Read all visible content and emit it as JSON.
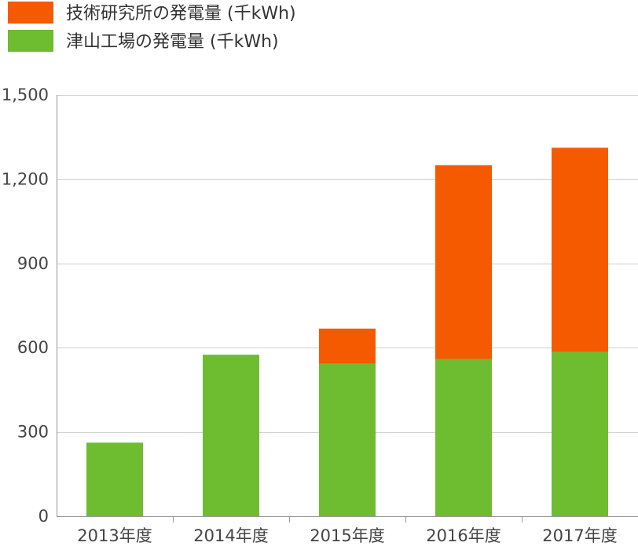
{
  "chart_data": {
    "type": "bar",
    "stacked": true,
    "categories": [
      "2013年度",
      "2014年度",
      "2015年度",
      "2016年度",
      "2017年度"
    ],
    "series": [
      {
        "name": "津山工場の発電量 (千kWh)",
        "color": "#6ebd30",
        "values": [
          262,
          575,
          543,
          560,
          585
        ]
      },
      {
        "name": "技術研究所の発電量 (千kWh)",
        "color": "#f55a00",
        "values": [
          0,
          0,
          125,
          690,
          727
        ]
      }
    ],
    "ylim": [
      0,
      1500
    ],
    "yticks": [
      0,
      300,
      600,
      900,
      1200,
      1500
    ],
    "ytick_labels": [
      "0",
      "300",
      "600",
      "900",
      "1,200",
      "1,500"
    ],
    "grid": true,
    "legend_position": "top-left",
    "legend_order": [
      1,
      0
    ],
    "title": "",
    "xlabel": "",
    "ylabel": ""
  }
}
